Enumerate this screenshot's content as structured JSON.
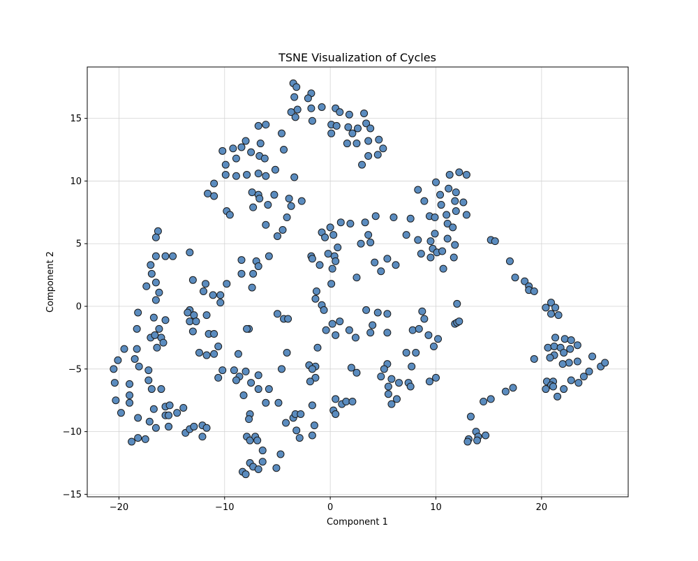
{
  "chart_data": {
    "type": "scatter",
    "title": "TSNE Visualization of Cycles",
    "xlabel": "Component 1",
    "ylabel": "Component 2",
    "xlim": [
      -23,
      28.2
    ],
    "ylim": [
      -15.2,
      19.1
    ],
    "xticks": [
      -20,
      -10,
      0,
      10,
      20
    ],
    "yticks": [
      -15,
      -10,
      -5,
      0,
      5,
      10,
      15
    ],
    "grid": true,
    "legend": "none",
    "marker_color": "#5b8cbf",
    "marker_edge_color": "#1a1a1a",
    "points": [
      [
        -3.5,
        17.8
      ],
      [
        -3.2,
        17.5
      ],
      [
        -1.8,
        17
      ],
      [
        -2.1,
        16.6
      ],
      [
        -3.4,
        16.7
      ],
      [
        -0.8,
        15.9
      ],
      [
        -1.8,
        15.8
      ],
      [
        -3.1,
        15.7
      ],
      [
        -3.7,
        15.5
      ],
      [
        -3.3,
        15.1
      ],
      [
        -1.7,
        14.8
      ],
      [
        0.5,
        15.8
      ],
      [
        0.9,
        15.5
      ],
      [
        1.8,
        15.3
      ],
      [
        3.2,
        15.4
      ],
      [
        3.4,
        14.6
      ],
      [
        0.1,
        14.5
      ],
      [
        0.6,
        14.4
      ],
      [
        1.7,
        14.3
      ],
      [
        2.6,
        14.2
      ],
      [
        3.8,
        14.2
      ],
      [
        0.1,
        13.8
      ],
      [
        2.1,
        13.8
      ],
      [
        4.6,
        13.3
      ],
      [
        1.6,
        13
      ],
      [
        2.5,
        13
      ],
      [
        3.6,
        13.2
      ],
      [
        5,
        12.6
      ],
      [
        4.5,
        12.1
      ],
      [
        3.6,
        12
      ],
      [
        3,
        11.3
      ],
      [
        -6.8,
        14.4
      ],
      [
        -6.1,
        14.5
      ],
      [
        -4.6,
        13.8
      ],
      [
        -8,
        13.2
      ],
      [
        -6.6,
        13
      ],
      [
        -9.2,
        12.6
      ],
      [
        -8.4,
        12.7
      ],
      [
        -10.2,
        12.4
      ],
      [
        -4.4,
        12.5
      ],
      [
        -7.5,
        12.3
      ],
      [
        -6.7,
        12
      ],
      [
        -6.2,
        11.8
      ],
      [
        -8.9,
        11.8
      ],
      [
        -9.9,
        11.3
      ],
      [
        -5.2,
        10.9
      ],
      [
        -7.9,
        10.5
      ],
      [
        -9.9,
        10.5
      ],
      [
        -8.9,
        10.4
      ],
      [
        -6.8,
        10.6
      ],
      [
        -6.1,
        10.4
      ],
      [
        -3.4,
        10.3
      ],
      [
        -11,
        9.8
      ],
      [
        -11.6,
        9
      ],
      [
        -11,
        8.8
      ],
      [
        -7.4,
        9.1
      ],
      [
        -6.8,
        8.9
      ],
      [
        -6.7,
        8.6
      ],
      [
        -5.3,
        8.9
      ],
      [
        -3.9,
        8.6
      ],
      [
        -2.7,
        8.4
      ],
      [
        -5.9,
        8.1
      ],
      [
        -3.7,
        8
      ],
      [
        -7.3,
        7.9
      ],
      [
        -9.8,
        7.6
      ],
      [
        -9.5,
        7.3
      ],
      [
        -4.1,
        7.1
      ],
      [
        -6.1,
        6.5
      ],
      [
        -4.5,
        6.1
      ],
      [
        -5,
        5.6
      ],
      [
        -16.3,
        6
      ],
      [
        -16.5,
        5.5
      ],
      [
        -16.5,
        4
      ],
      [
        -15.6,
        4
      ],
      [
        -14.9,
        4
      ],
      [
        -13.3,
        4.3
      ],
      [
        -17,
        3.3
      ],
      [
        -16.9,
        2.6
      ],
      [
        -16.5,
        1.9
      ],
      [
        -17.4,
        1.6
      ],
      [
        -16.2,
        1.1
      ],
      [
        -16.5,
        0.5
      ],
      [
        -18.2,
        -0.5
      ],
      [
        -16.7,
        -0.9
      ],
      [
        -15.6,
        -1.1
      ],
      [
        -18.3,
        -1.8
      ],
      [
        -16.2,
        -1.8
      ],
      [
        -17,
        -2.5
      ],
      [
        -16.6,
        -2.3
      ],
      [
        -16,
        -2.5
      ],
      [
        -15.8,
        -2.9
      ],
      [
        -16.4,
        -3.3
      ],
      [
        -19.5,
        -3.4
      ],
      [
        -18.3,
        -3.4
      ],
      [
        -18.5,
        -4.2
      ],
      [
        -20.1,
        -4.3
      ],
      [
        -18.1,
        -4.8
      ],
      [
        -20.5,
        -5
      ],
      [
        -17.2,
        -5.1
      ],
      [
        -17.2,
        -5.9
      ],
      [
        -20.4,
        -6.1
      ],
      [
        -19,
        -6.2
      ],
      [
        -16.9,
        -6.6
      ],
      [
        -16,
        -6.6
      ],
      [
        -19,
        -7.1
      ],
      [
        -20.3,
        -7.5
      ],
      [
        -19,
        -7.7
      ],
      [
        -15.6,
        -8
      ],
      [
        -15.2,
        -7.9
      ],
      [
        -16.7,
        -8.2
      ],
      [
        -19.8,
        -8.5
      ],
      [
        -15.6,
        -8.7
      ],
      [
        -15.3,
        -8.7
      ],
      [
        -14.5,
        -8.5
      ],
      [
        -13.9,
        -8.1
      ],
      [
        -18.2,
        -8.9
      ],
      [
        -17.1,
        -9.2
      ],
      [
        -16.5,
        -9.7
      ],
      [
        -15.3,
        -9.6
      ],
      [
        -18.2,
        -10.5
      ],
      [
        -18.8,
        -10.8
      ],
      [
        -17.5,
        -10.6
      ],
      [
        -13.7,
        -10.1
      ],
      [
        -13.3,
        -9.8
      ],
      [
        -12.9,
        -9.6
      ],
      [
        -12.1,
        -9.5
      ],
      [
        -11.7,
        -9.7
      ],
      [
        -12.1,
        -10.4
      ],
      [
        -13,
        2.1
      ],
      [
        -11.8,
        1.8
      ],
      [
        -9.8,
        1.8
      ],
      [
        -12,
        1.2
      ],
      [
        -11.1,
        0.9
      ],
      [
        -10.4,
        0.9
      ],
      [
        -10.4,
        0.3
      ],
      [
        -13.3,
        -0.3
      ],
      [
        -13.5,
        -0.5
      ],
      [
        -12.9,
        -0.7
      ],
      [
        -13.3,
        -1.2
      ],
      [
        -12.7,
        -1.2
      ],
      [
        -11.7,
        -0.7
      ],
      [
        -13,
        -2
      ],
      [
        -11.5,
        -2.2
      ],
      [
        -11,
        -2.2
      ],
      [
        -10.6,
        -3.2
      ],
      [
        -12.4,
        -3.7
      ],
      [
        -11.7,
        -3.9
      ],
      [
        -11,
        -3.8
      ],
      [
        -10.2,
        -5.1
      ],
      [
        -10.6,
        -5.7
      ],
      [
        -9.1,
        -5.1
      ],
      [
        -8.7,
        -3.8
      ],
      [
        -8.6,
        -5.6
      ],
      [
        -8,
        -5.2
      ],
      [
        -8.9,
        -5.9
      ],
      [
        -7.7,
        -1.8
      ],
      [
        -7.9,
        -1.8
      ],
      [
        -8.4,
        3.7
      ],
      [
        -7,
        3.6
      ],
      [
        -6.8,
        3.2
      ],
      [
        -5.8,
        4
      ],
      [
        -8.4,
        2.6
      ],
      [
        -7.3,
        2.6
      ],
      [
        -7.4,
        1.5
      ],
      [
        -6.8,
        -5.5
      ],
      [
        -7.5,
        -6.1
      ],
      [
        -5.8,
        -6.6
      ],
      [
        -6.8,
        -6.6
      ],
      [
        -8.2,
        -7.1
      ],
      [
        -6.1,
        -7.7
      ],
      [
        -7.6,
        -8.6
      ],
      [
        -7.7,
        -9
      ],
      [
        -4.9,
        -7.7
      ],
      [
        -4.2,
        -9.3
      ],
      [
        -3.2,
        -9.9
      ],
      [
        -3.5,
        -8.9
      ],
      [
        -3.3,
        -8.6
      ],
      [
        -2.8,
        -8.6
      ],
      [
        -2.9,
        -10.5
      ],
      [
        -1.7,
        -10.3
      ],
      [
        -1.7,
        -7.9
      ],
      [
        -1.5,
        -9.5
      ],
      [
        -7.9,
        -10.4
      ],
      [
        -7.6,
        -10.7
      ],
      [
        -7.1,
        -10.4
      ],
      [
        -6.9,
        -10.7
      ],
      [
        -6.4,
        -11.5
      ],
      [
        -4.7,
        -11.8
      ],
      [
        -7.6,
        -12.5
      ],
      [
        -7.3,
        -12.8
      ],
      [
        -6.4,
        -12.4
      ],
      [
        -6.8,
        -13
      ],
      [
        -5.1,
        -12.9
      ],
      [
        -8.3,
        -13.2
      ],
      [
        -8,
        -13.4
      ],
      [
        -5,
        -0.6
      ],
      [
        -4.4,
        -1
      ],
      [
        -4,
        -1
      ],
      [
        -4.1,
        -3.7
      ],
      [
        -4.6,
        -5
      ],
      [
        -2,
        -4.7
      ],
      [
        -1.4,
        -4.8
      ],
      [
        -1.7,
        -5
      ],
      [
        -1.4,
        -5.7
      ],
      [
        -1.9,
        -6
      ],
      [
        -1.2,
        -3.3
      ],
      [
        -1.4,
        0.6
      ],
      [
        -1.3,
        1.2
      ],
      [
        -0.8,
        0.1
      ],
      [
        -0.6,
        -0.3
      ],
      [
        -0.4,
        -1.9
      ],
      [
        0.2,
        -1.4
      ],
      [
        0.9,
        -1.2
      ],
      [
        0.5,
        -2.3
      ],
      [
        1.8,
        -1.9
      ],
      [
        2.4,
        -2.5
      ],
      [
        2,
        -4.9
      ],
      [
        2.5,
        -5.3
      ],
      [
        0.5,
        -7.4
      ],
      [
        1.1,
        -7.8
      ],
      [
        1.5,
        -7.6
      ],
      [
        2.1,
        -7.6
      ],
      [
        0.3,
        -8.3
      ],
      [
        0.5,
        -8.6
      ],
      [
        -1.8,
        4
      ],
      [
        -1.7,
        3.8
      ],
      [
        -1,
        3.3
      ],
      [
        0.4,
        4
      ],
      [
        -0.2,
        4.2
      ],
      [
        0.5,
        3.6
      ],
      [
        0.2,
        3
      ],
      [
        0.7,
        4.7
      ],
      [
        0.3,
        5.7
      ],
      [
        -0.8,
        5.9
      ],
      [
        -0.5,
        5.5
      ],
      [
        0,
        6.3
      ],
      [
        1,
        6.7
      ],
      [
        1.9,
        6.6
      ],
      [
        0.1,
        1.8
      ],
      [
        2.5,
        2.3
      ],
      [
        2.9,
        5
      ],
      [
        3.3,
        6.7
      ],
      [
        3.6,
        5.7
      ],
      [
        3.8,
        5.1
      ],
      [
        4.3,
        7.2
      ],
      [
        4.2,
        3.5
      ],
      [
        4.8,
        2.8
      ],
      [
        5.4,
        3.8
      ],
      [
        6.2,
        3.3
      ],
      [
        6,
        7.1
      ],
      [
        7.2,
        5.7
      ],
      [
        7.6,
        7
      ],
      [
        8.3,
        5.3
      ],
      [
        3.4,
        -0.3
      ],
      [
        4.5,
        -0.5
      ],
      [
        5.4,
        -0.6
      ],
      [
        4,
        -1.5
      ],
      [
        3.8,
        -2.1
      ],
      [
        5.4,
        -2.1
      ],
      [
        7.8,
        -1.9
      ],
      [
        8.4,
        -1.8
      ],
      [
        8.7,
        -0.4
      ],
      [
        8.9,
        -1
      ],
      [
        5.4,
        -4.6
      ],
      [
        5.1,
        -5
      ],
      [
        4.8,
        -5.6
      ],
      [
        5.8,
        -5.8
      ],
      [
        5.5,
        -6.4
      ],
      [
        5.5,
        -7
      ],
      [
        6.5,
        -6.1
      ],
      [
        7.4,
        -6.1
      ],
      [
        6.3,
        -7.4
      ],
      [
        5.8,
        -7.8
      ],
      [
        7.7,
        -4.8
      ],
      [
        7.6,
        -6.4
      ],
      [
        7.2,
        -3.7
      ],
      [
        8.1,
        -3.7
      ],
      [
        9.3,
        -2.3
      ],
      [
        10.2,
        -2.6
      ],
      [
        9.8,
        -3.2
      ],
      [
        9.4,
        -6
      ],
      [
        10,
        -5.7
      ],
      [
        8.3,
        9.3
      ],
      [
        8.9,
        8.4
      ],
      [
        10,
        9.9
      ],
      [
        10.4,
        8.9
      ],
      [
        10.5,
        8.1
      ],
      [
        11.2,
        9.4
      ],
      [
        11.3,
        10.5
      ],
      [
        12.2,
        10.7
      ],
      [
        12.9,
        10.5
      ],
      [
        11.9,
        9.1
      ],
      [
        11.8,
        8.4
      ],
      [
        12.6,
        8.3
      ],
      [
        11.9,
        7.6
      ],
      [
        9.4,
        7.2
      ],
      [
        9.9,
        7.1
      ],
      [
        11,
        7.3
      ],
      [
        12.9,
        7.3
      ],
      [
        11.1,
        6.6
      ],
      [
        11.6,
        6.3
      ],
      [
        9.9,
        5.8
      ],
      [
        11.1,
        5.4
      ],
      [
        9.5,
        5.2
      ],
      [
        9.7,
        4.6
      ],
      [
        10.1,
        4.3
      ],
      [
        10.6,
        4.4
      ],
      [
        11.8,
        4.9
      ],
      [
        8.6,
        4.2
      ],
      [
        9.5,
        3.9
      ],
      [
        11.7,
        3.9
      ],
      [
        10.7,
        3
      ],
      [
        12,
        0.2
      ],
      [
        11.8,
        -1.4
      ],
      [
        12,
        -1.3
      ],
      [
        12.2,
        -1.2
      ],
      [
        15.2,
        5.3
      ],
      [
        15.6,
        5.2
      ],
      [
        17,
        3.6
      ],
      [
        17.5,
        2.3
      ],
      [
        18.4,
        2
      ],
      [
        18.8,
        1.6
      ],
      [
        18.8,
        1.3
      ],
      [
        19.3,
        1.2
      ],
      [
        20.4,
        -0.1
      ],
      [
        20.9,
        0.3
      ],
      [
        21.3,
        -0.1
      ],
      [
        20.9,
        -0.6
      ],
      [
        21.6,
        -0.7
      ],
      [
        21.3,
        -2.5
      ],
      [
        22.2,
        -2.6
      ],
      [
        22.8,
        -2.7
      ],
      [
        20.6,
        -3.3
      ],
      [
        21.2,
        -3.2
      ],
      [
        21.8,
        -3.3
      ],
      [
        22.7,
        -3.4
      ],
      [
        23.4,
        -3.1
      ],
      [
        22.1,
        -3.7
      ],
      [
        21.2,
        -3.9
      ],
      [
        20.8,
        -4.1
      ],
      [
        19.3,
        -4.2
      ],
      [
        22.6,
        -4.5
      ],
      [
        23.4,
        -4.4
      ],
      [
        22,
        -4.6
      ],
      [
        24.8,
        -4
      ],
      [
        25.6,
        -4.8
      ],
      [
        26,
        -4.5
      ],
      [
        24.5,
        -5.2
      ],
      [
        24,
        -5.6
      ],
      [
        22.8,
        -5.9
      ],
      [
        23.5,
        -6.1
      ],
      [
        20.5,
        -6
      ],
      [
        21.1,
        -6
      ],
      [
        20.9,
        -6.3
      ],
      [
        21.1,
        -6.4
      ],
      [
        20.4,
        -6.6
      ],
      [
        22.1,
        -6.6
      ],
      [
        21.5,
        -7.2
      ],
      [
        17.3,
        -6.5
      ],
      [
        16.6,
        -6.8
      ],
      [
        15.2,
        -7.4
      ],
      [
        14.5,
        -7.6
      ],
      [
        13.3,
        -8.8
      ],
      [
        13.8,
        -10
      ],
      [
        14,
        -10.4
      ],
      [
        14.7,
        -10.3
      ],
      [
        13.1,
        -10.6
      ],
      [
        13,
        -10.8
      ],
      [
        13.9,
        -10.7
      ]
    ]
  }
}
